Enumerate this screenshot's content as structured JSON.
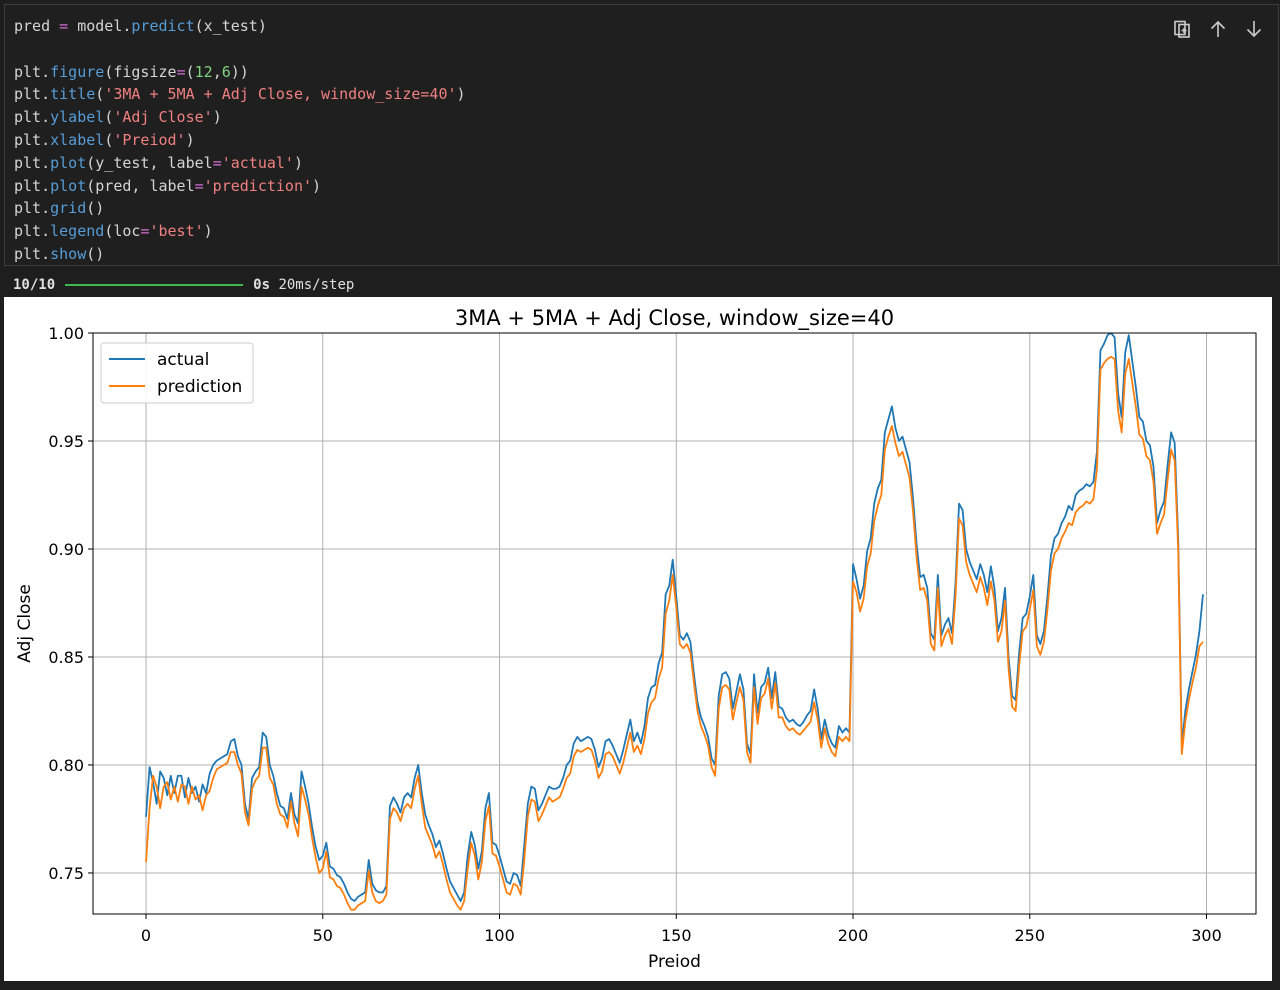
{
  "code_cell": {
    "lines": [
      [
        {
          "t": "pred ",
          "c": ""
        },
        {
          "t": "=",
          "c": "op"
        },
        {
          "t": " model.",
          "c": ""
        },
        {
          "t": "predict",
          "c": "fn"
        },
        {
          "t": "(x_test)",
          "c": ""
        }
      ],
      [],
      [
        {
          "t": "plt.",
          "c": ""
        },
        {
          "t": "figure",
          "c": "fn"
        },
        {
          "t": "(figsize",
          "c": ""
        },
        {
          "t": "=",
          "c": "op"
        },
        {
          "t": "(",
          "c": ""
        },
        {
          "t": "12",
          "c": "num"
        },
        {
          "t": ",",
          "c": ""
        },
        {
          "t": "6",
          "c": "num"
        },
        {
          "t": "))",
          "c": ""
        }
      ],
      [
        {
          "t": "plt.",
          "c": ""
        },
        {
          "t": "title",
          "c": "fn"
        },
        {
          "t": "(",
          "c": ""
        },
        {
          "t": "'3MA + 5MA + Adj Close, window_size=40'",
          "c": "str"
        },
        {
          "t": ")",
          "c": ""
        }
      ],
      [
        {
          "t": "plt.",
          "c": ""
        },
        {
          "t": "ylabel",
          "c": "fn"
        },
        {
          "t": "(",
          "c": ""
        },
        {
          "t": "'Adj Close'",
          "c": "str"
        },
        {
          "t": ")",
          "c": ""
        }
      ],
      [
        {
          "t": "plt.",
          "c": ""
        },
        {
          "t": "xlabel",
          "c": "fn"
        },
        {
          "t": "(",
          "c": ""
        },
        {
          "t": "'Preiod'",
          "c": "str"
        },
        {
          "t": ")",
          "c": ""
        }
      ],
      [
        {
          "t": "plt.",
          "c": ""
        },
        {
          "t": "plot",
          "c": "fn"
        },
        {
          "t": "(y_test, label",
          "c": ""
        },
        {
          "t": "=",
          "c": "op"
        },
        {
          "t": "'actual'",
          "c": "str"
        },
        {
          "t": ")",
          "c": ""
        }
      ],
      [
        {
          "t": "plt.",
          "c": ""
        },
        {
          "t": "plot",
          "c": "fn"
        },
        {
          "t": "(pred, label",
          "c": ""
        },
        {
          "t": "=",
          "c": "op"
        },
        {
          "t": "'prediction'",
          "c": "str"
        },
        {
          "t": ")",
          "c": ""
        }
      ],
      [
        {
          "t": "plt.",
          "c": ""
        },
        {
          "t": "grid",
          "c": "fn"
        },
        {
          "t": "()",
          "c": ""
        }
      ],
      [
        {
          "t": "plt.",
          "c": ""
        },
        {
          "t": "legend",
          "c": "fn"
        },
        {
          "t": "(loc",
          "c": ""
        },
        {
          "t": "=",
          "c": "op"
        },
        {
          "t": "'best'",
          "c": "str"
        },
        {
          "t": ")",
          "c": ""
        }
      ],
      [
        {
          "t": "plt.",
          "c": ""
        },
        {
          "t": "show",
          "c": "fn"
        },
        {
          "t": "()",
          "c": ""
        }
      ]
    ],
    "toolbar": {
      "icons": [
        "copy-icon",
        "arrow-up-icon",
        "arrow-down-icon"
      ]
    }
  },
  "progress": {
    "count": "10/10",
    "time": "0s",
    "rate": "20ms/step",
    "color": "#3fb950"
  },
  "chart_data": {
    "type": "line",
    "title": "3MA + 5MA + Adj Close, window_size=40",
    "xlabel": "Preiod",
    "ylabel": "Adj Close",
    "xlim": [
      -15,
      314
    ],
    "ylim": [
      0.731,
      1.0
    ],
    "xticks": [
      0,
      50,
      100,
      150,
      200,
      250,
      300
    ],
    "yticks": [
      0.75,
      0.8,
      0.85,
      0.9,
      0.95,
      1.0
    ],
    "grid": true,
    "legend_position": "top-left",
    "series": [
      {
        "name": "actual",
        "color": "#1f77b4",
        "values": [
          0.776,
          0.799,
          0.792,
          0.782,
          0.797,
          0.794,
          0.786,
          0.795,
          0.787,
          0.795,
          0.795,
          0.785,
          0.794,
          0.787,
          0.79,
          0.783,
          0.791,
          0.787,
          0.796,
          0.8,
          0.802,
          0.803,
          0.804,
          0.805,
          0.811,
          0.812,
          0.804,
          0.8,
          0.782,
          0.775,
          0.794,
          0.797,
          0.799,
          0.815,
          0.813,
          0.8,
          0.795,
          0.787,
          0.781,
          0.78,
          0.775,
          0.787,
          0.777,
          0.773,
          0.797,
          0.79,
          0.782,
          0.771,
          0.762,
          0.756,
          0.758,
          0.764,
          0.753,
          0.752,
          0.749,
          0.748,
          0.745,
          0.741,
          0.738,
          0.737,
          0.739,
          0.74,
          0.741,
          0.756,
          0.745,
          0.742,
          0.741,
          0.741,
          0.744,
          0.781,
          0.785,
          0.782,
          0.778,
          0.785,
          0.787,
          0.785,
          0.794,
          0.8,
          0.787,
          0.777,
          0.772,
          0.768,
          0.762,
          0.765,
          0.759,
          0.752,
          0.746,
          0.743,
          0.74,
          0.737,
          0.741,
          0.758,
          0.769,
          0.763,
          0.752,
          0.76,
          0.78,
          0.787,
          0.764,
          0.763,
          0.758,
          0.752,
          0.746,
          0.745,
          0.75,
          0.749,
          0.744,
          0.763,
          0.782,
          0.79,
          0.789,
          0.779,
          0.782,
          0.786,
          0.79,
          0.789,
          0.789,
          0.79,
          0.794,
          0.8,
          0.802,
          0.81,
          0.813,
          0.811,
          0.812,
          0.813,
          0.812,
          0.807,
          0.799,
          0.803,
          0.811,
          0.812,
          0.809,
          0.805,
          0.801,
          0.807,
          0.814,
          0.821,
          0.811,
          0.815,
          0.81,
          0.818,
          0.831,
          0.836,
          0.837,
          0.847,
          0.852,
          0.879,
          0.883,
          0.895,
          0.878,
          0.86,
          0.858,
          0.861,
          0.857,
          0.842,
          0.829,
          0.822,
          0.818,
          0.813,
          0.803,
          0.8,
          0.832,
          0.842,
          0.843,
          0.84,
          0.826,
          0.834,
          0.842,
          0.835,
          0.81,
          0.805,
          0.842,
          0.824,
          0.836,
          0.838,
          0.845,
          0.831,
          0.843,
          0.827,
          0.826,
          0.822,
          0.82,
          0.821,
          0.819,
          0.818,
          0.82,
          0.823,
          0.825,
          0.835,
          0.826,
          0.812,
          0.821,
          0.814,
          0.81,
          0.808,
          0.818,
          0.815,
          0.817,
          0.815,
          0.893,
          0.886,
          0.877,
          0.883,
          0.899,
          0.905,
          0.921,
          0.928,
          0.932,
          0.954,
          0.96,
          0.966,
          0.956,
          0.95,
          0.952,
          0.946,
          0.94,
          0.923,
          0.902,
          0.887,
          0.888,
          0.882,
          0.861,
          0.858,
          0.888,
          0.86,
          0.865,
          0.868,
          0.861,
          0.884,
          0.921,
          0.918,
          0.9,
          0.894,
          0.89,
          0.886,
          0.893,
          0.888,
          0.88,
          0.892,
          0.882,
          0.862,
          0.868,
          0.882,
          0.85,
          0.832,
          0.83,
          0.852,
          0.868,
          0.87,
          0.878,
          0.888,
          0.86,
          0.856,
          0.862,
          0.878,
          0.897,
          0.905,
          0.907,
          0.912,
          0.915,
          0.92,
          0.918,
          0.925,
          0.927,
          0.928,
          0.93,
          0.929,
          0.931,
          0.945,
          0.992,
          0.995,
          0.999,
          1.0,
          0.998,
          0.972,
          0.961,
          0.991,
          0.999,
          0.987,
          0.975,
          0.961,
          0.959,
          0.95,
          0.948,
          0.938,
          0.912,
          0.918,
          0.922,
          0.939,
          0.954,
          0.949,
          0.904,
          0.809,
          0.825,
          0.835,
          0.843,
          0.851,
          0.862,
          0.879
        ]
      },
      {
        "name": "prediction",
        "color": "#ff7f0e",
        "values": [
          0.755,
          0.78,
          0.795,
          0.79,
          0.78,
          0.79,
          0.792,
          0.784,
          0.79,
          0.783,
          0.791,
          0.79,
          0.782,
          0.79,
          0.784,
          0.786,
          0.779,
          0.786,
          0.788,
          0.794,
          0.798,
          0.799,
          0.8,
          0.801,
          0.806,
          0.806,
          0.8,
          0.796,
          0.778,
          0.772,
          0.789,
          0.793,
          0.795,
          0.808,
          0.808,
          0.794,
          0.791,
          0.782,
          0.777,
          0.776,
          0.771,
          0.783,
          0.773,
          0.767,
          0.79,
          0.784,
          0.777,
          0.766,
          0.757,
          0.75,
          0.752,
          0.76,
          0.748,
          0.747,
          0.744,
          0.743,
          0.74,
          0.736,
          0.733,
          0.733,
          0.735,
          0.736,
          0.737,
          0.751,
          0.741,
          0.737,
          0.736,
          0.737,
          0.74,
          0.775,
          0.78,
          0.778,
          0.774,
          0.78,
          0.782,
          0.78,
          0.789,
          0.795,
          0.782,
          0.771,
          0.767,
          0.763,
          0.757,
          0.76,
          0.754,
          0.747,
          0.741,
          0.738,
          0.735,
          0.733,
          0.737,
          0.752,
          0.764,
          0.758,
          0.747,
          0.755,
          0.774,
          0.781,
          0.759,
          0.758,
          0.753,
          0.747,
          0.741,
          0.74,
          0.745,
          0.744,
          0.74,
          0.756,
          0.776,
          0.784,
          0.783,
          0.774,
          0.777,
          0.781,
          0.785,
          0.783,
          0.784,
          0.785,
          0.789,
          0.794,
          0.796,
          0.804,
          0.807,
          0.806,
          0.807,
          0.808,
          0.807,
          0.802,
          0.794,
          0.797,
          0.805,
          0.806,
          0.804,
          0.8,
          0.796,
          0.801,
          0.808,
          0.815,
          0.806,
          0.809,
          0.805,
          0.812,
          0.824,
          0.829,
          0.831,
          0.84,
          0.845,
          0.87,
          0.876,
          0.888,
          0.873,
          0.856,
          0.854,
          0.856,
          0.852,
          0.838,
          0.825,
          0.818,
          0.814,
          0.809,
          0.799,
          0.795,
          0.826,
          0.836,
          0.837,
          0.835,
          0.821,
          0.829,
          0.836,
          0.83,
          0.806,
          0.801,
          0.836,
          0.819,
          0.831,
          0.833,
          0.84,
          0.826,
          0.838,
          0.822,
          0.822,
          0.818,
          0.816,
          0.817,
          0.815,
          0.814,
          0.816,
          0.818,
          0.82,
          0.829,
          0.821,
          0.808,
          0.817,
          0.81,
          0.806,
          0.804,
          0.813,
          0.811,
          0.813,
          0.811,
          0.885,
          0.88,
          0.871,
          0.877,
          0.892,
          0.898,
          0.913,
          0.92,
          0.925,
          0.946,
          0.952,
          0.957,
          0.949,
          0.943,
          0.945,
          0.939,
          0.933,
          0.917,
          0.896,
          0.881,
          0.882,
          0.876,
          0.856,
          0.853,
          0.882,
          0.855,
          0.86,
          0.863,
          0.856,
          0.878,
          0.914,
          0.911,
          0.894,
          0.888,
          0.884,
          0.88,
          0.887,
          0.882,
          0.874,
          0.885,
          0.876,
          0.857,
          0.862,
          0.876,
          0.845,
          0.827,
          0.825,
          0.846,
          0.862,
          0.864,
          0.872,
          0.881,
          0.855,
          0.851,
          0.857,
          0.872,
          0.89,
          0.898,
          0.9,
          0.905,
          0.908,
          0.912,
          0.911,
          0.917,
          0.919,
          0.92,
          0.922,
          0.921,
          0.923,
          0.937,
          0.983,
          0.986,
          0.988,
          0.989,
          0.988,
          0.964,
          0.954,
          0.981,
          0.988,
          0.977,
          0.966,
          0.953,
          0.951,
          0.943,
          0.941,
          0.931,
          0.907,
          0.912,
          0.916,
          0.932,
          0.946,
          0.941,
          0.899,
          0.805,
          0.82,
          0.83,
          0.838,
          0.845,
          0.855,
          0.857
        ]
      }
    ]
  }
}
